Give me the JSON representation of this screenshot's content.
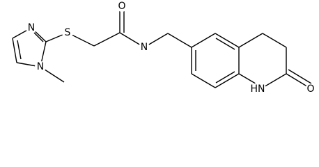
{
  "atoms": [
    {
      "label": "N"
    },
    {
      "label": "N"
    },
    {
      "label": "S"
    },
    {
      "label": "O"
    },
    {
      "label": "N"
    },
    {
      "label": "HN"
    },
    {
      "label": "O"
    }
  ]
}
